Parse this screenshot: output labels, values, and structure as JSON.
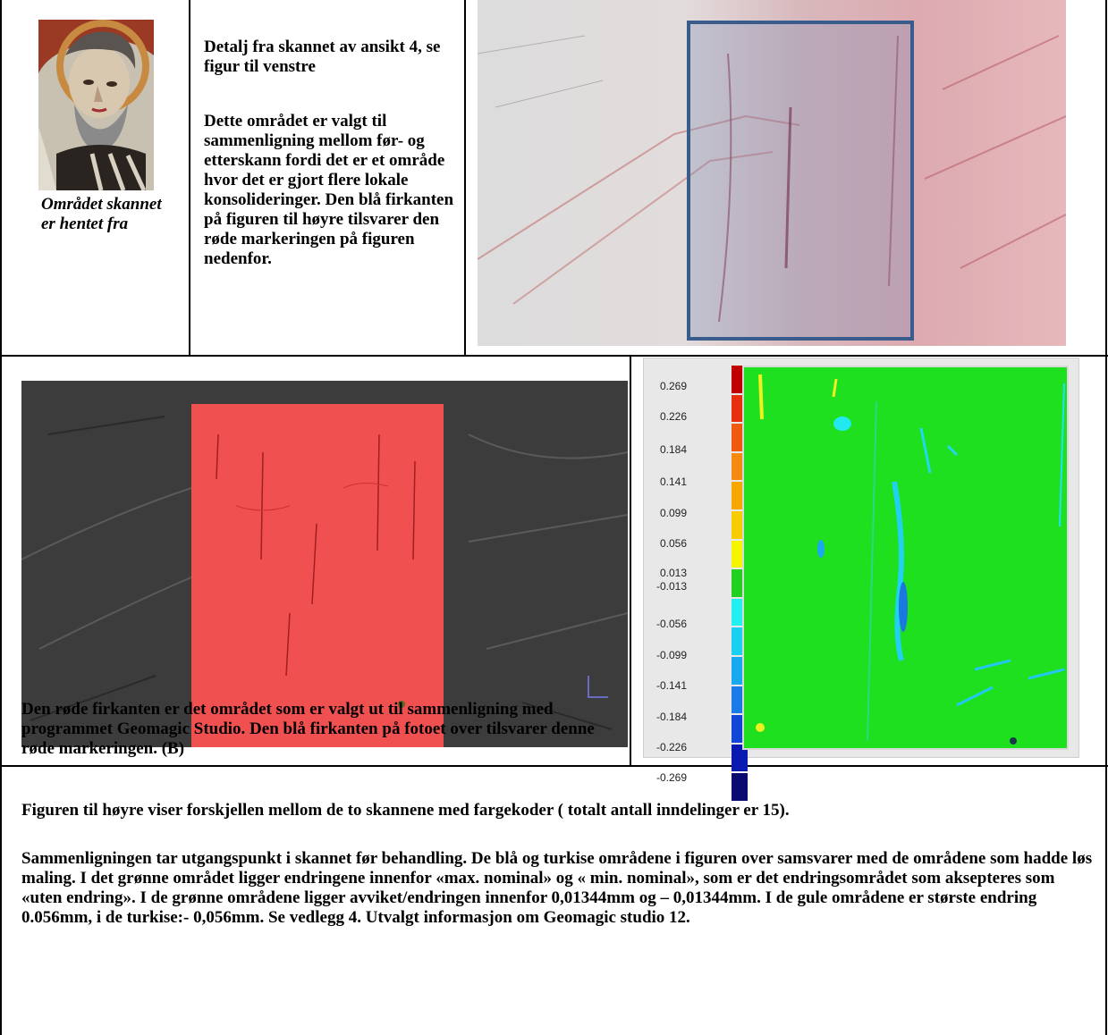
{
  "top_left": {
    "caption": "Området skannet er hentet fra"
  },
  "top_middle": {
    "heading": "Detalj fra skannet av ansikt 4, se figur til venstre",
    "body": "Dette området er valgt til sammenligning mellom før- og etterskann fordi det er et område hvor det er gjort flere lokale konsolideringer. Den blå firkanten på figuren til høyre tilsvarer den røde markeringen på figuren nedenfor."
  },
  "mid_left": {
    "caption": "Den røde firkanten er det området som er valgt ut til sammenligning med programmet Geomagic Studio. Den blå firkanten på fotoet over tilsvarer denne røde markeringen. (B)"
  },
  "legend": {
    "labels": [
      "0.269",
      "0.226",
      "0.184",
      "0.141",
      "0.099",
      "0.056",
      "0.013",
      "-0.013",
      "-0.056",
      "-0.099",
      "-0.141",
      "-0.184",
      "-0.226",
      "-0.269"
    ],
    "colors": [
      "#c00000",
      "#e83010",
      "#f05a10",
      "#f58a10",
      "#f7a800",
      "#f8cc00",
      "#f5f500",
      "#22d022",
      "#22f0f0",
      "#1ad0f0",
      "#18a8f0",
      "#1a7ae8",
      "#1246d8",
      "#0a1ab0",
      "#0a0a70"
    ]
  },
  "bottom": {
    "para1": "Figuren til høyre viser forskjellen mellom de to skannene med fargekoder ( totalt antall inndelinger er 15).",
    "para2": "Sammenligningen tar utgangspunkt i skannet før behandling. De blå og turkise områdene i figuren over samsvarer med de områdene som hadde løs maling. I det grønne området ligger endringene innenfor «max. nominal» og « min. nominal», som er det endringsområdet som aksepteres som «uten endring». I de grønne områdene ligger avviket/endringen innenfor 0,01344mm og – 0,01344mm. I de gule områdene er største endring 0.056mm, i de turkise:- 0,056mm. Se vedlegg 4. Utvalgt informasjon om Geomagic studio 12."
  }
}
